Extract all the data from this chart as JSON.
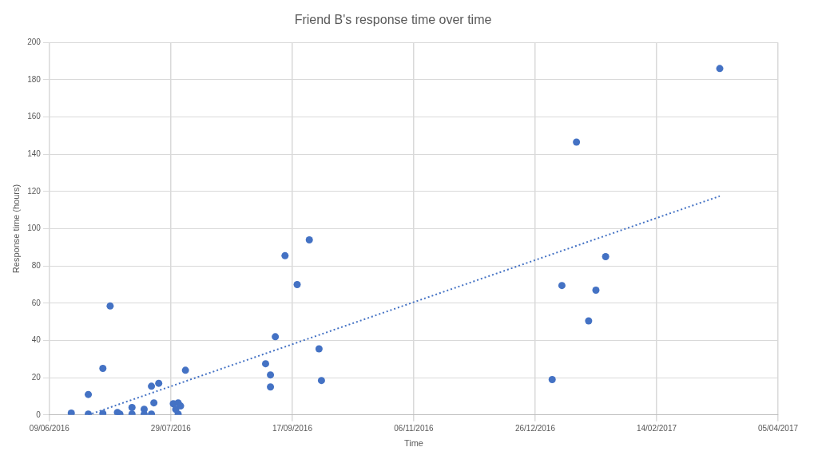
{
  "chart_data": {
    "type": "scatter",
    "title": "Friend B's response time over time",
    "xlabel": "Time",
    "ylabel": "Response time (hours)",
    "xlim": [
      "2016-06-09",
      "2017-04-05"
    ],
    "xticks": [
      {
        "value": "2016-06-09",
        "label": "09/06/2016"
      },
      {
        "value": "2016-07-29",
        "label": "29/07/2016"
      },
      {
        "value": "2016-09-17",
        "label": "17/09/2016"
      },
      {
        "value": "2016-11-06",
        "label": "06/11/2016"
      },
      {
        "value": "2016-12-26",
        "label": "26/12/2016"
      },
      {
        "value": "2017-02-14",
        "label": "14/02/2017"
      },
      {
        "value": "2017-04-05",
        "label": "05/04/2017"
      }
    ],
    "ylim": [
      0,
      200
    ],
    "yticks": [
      0,
      20,
      40,
      60,
      80,
      100,
      120,
      140,
      160,
      180,
      200
    ],
    "grid": true,
    "marker": "circle",
    "series": [
      {
        "type": "scatter",
        "color": "#4472c4",
        "x": [
          "2016-06-18",
          "2016-06-25",
          "2016-06-25",
          "2016-07-01",
          "2016-07-01",
          "2016-07-04",
          "2016-07-07",
          "2016-07-08",
          "2016-07-13",
          "2016-07-13",
          "2016-07-18",
          "2016-07-18",
          "2016-07-21",
          "2016-07-21",
          "2016-07-22",
          "2016-07-24",
          "2016-07-30",
          "2016-07-31",
          "2016-08-01",
          "2016-08-01",
          "2016-08-02",
          "2016-08-04",
          "2016-09-06",
          "2016-09-08",
          "2016-09-08",
          "2016-09-10",
          "2016-09-14",
          "2016-09-19",
          "2016-09-24",
          "2016-09-28",
          "2016-09-29",
          "2017-01-02",
          "2017-01-06",
          "2017-01-12",
          "2017-01-17",
          "2017-01-20",
          "2017-01-24",
          "2017-03-12"
        ],
        "values": [
          1,
          11,
          0.5,
          25,
          0.8,
          58.5,
          1.3,
          0.5,
          4,
          0.5,
          3,
          0.4,
          15.4,
          0.5,
          6.5,
          17,
          6,
          3,
          6.5,
          0.5,
          4.8,
          24,
          27.5,
          21.5,
          15,
          42,
          85.5,
          70,
          94,
          35.5,
          18.5,
          19,
          69.5,
          146.5,
          50.5,
          67,
          85,
          186
        ]
      },
      {
        "type": "line",
        "color": "#4472c4",
        "line_style": "dotted",
        "marker": "none",
        "x": [
          "2016-06-25",
          "2017-03-12"
        ],
        "values": [
          0,
          117.5
        ]
      }
    ]
  }
}
